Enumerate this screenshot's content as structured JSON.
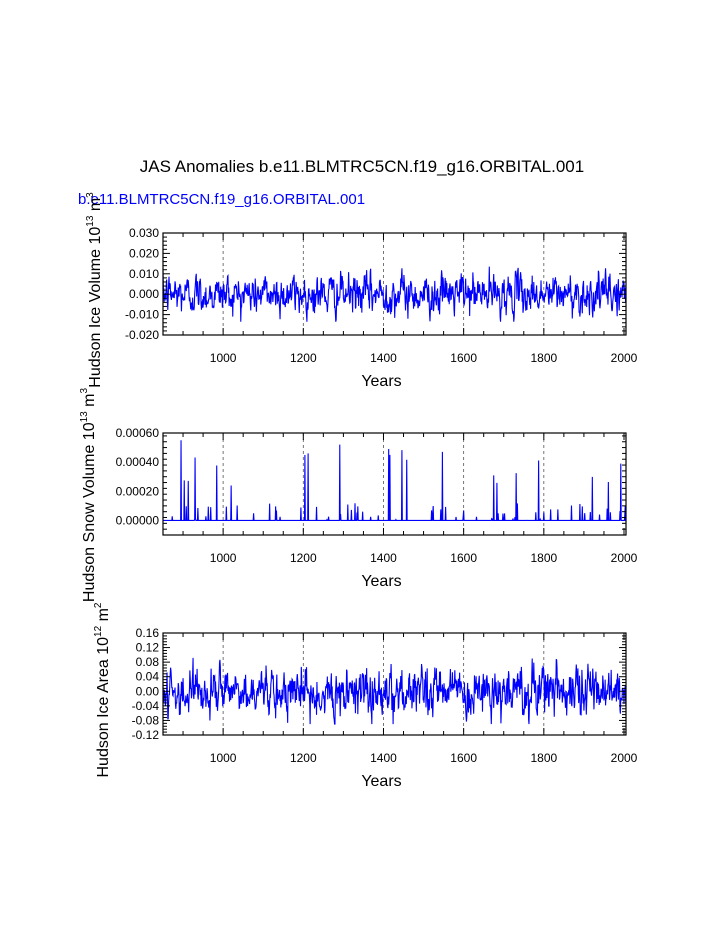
{
  "figure": {
    "title": "JAS Anomalies b.e11.BLMTRC5CN.f19_g16.ORBITAL.001",
    "subtitle": "b.e11.BLMTRC5CN.f19_g16.ORBITAL.001",
    "subtitle_color": "#0000ff",
    "line_color": "#0000ff",
    "grid_color": "#555555"
  },
  "chart_data": [
    {
      "type": "line",
      "ylabel": "Hudson Ice Volume 10",
      "ylabel_sup": "13",
      "ylabel_unit": " m",
      "ylabel_unit_sup": "3",
      "xlabel": "Years",
      "xlim": [
        850,
        2005
      ],
      "ylim": [
        -0.02,
        0.03
      ],
      "xticks": [
        1000,
        1200,
        1400,
        1600,
        1800,
        2000
      ],
      "xtick_labels": [
        "1000",
        "1200",
        "1400",
        "1600",
        "1800",
        "2000"
      ],
      "yticks": [
        -0.02,
        -0.01,
        0.0,
        0.01,
        0.02,
        0.03
      ],
      "ytick_labels": [
        "-0.020",
        "-0.010",
        "0.000",
        "0.010",
        "0.020",
        "0.030"
      ],
      "vgrid": [
        1000,
        1200,
        1400,
        1600,
        1800
      ],
      "series": [
        {
          "name": "Hudson Ice Volume anomaly",
          "x_start": 850,
          "x_end": 2005,
          "values": []
        }
      ]
    },
    {
      "type": "line",
      "ylabel": "Hudson Snow Volume 10",
      "ylabel_sup": "13",
      "ylabel_unit": " m",
      "ylabel_unit_sup": "3",
      "xlabel": "Years",
      "xlim": [
        850,
        2005
      ],
      "ylim": [
        -0.0001,
        0.0006
      ],
      "xticks": [
        1000,
        1200,
        1400,
        1600,
        1800,
        2000
      ],
      "xtick_labels": [
        "1000",
        "1200",
        "1400",
        "1600",
        "1800",
        "2000"
      ],
      "yticks": [
        0.0,
        0.0002,
        0.0004,
        0.0006
      ],
      "ytick_labels": [
        "0.00000",
        "0.00020",
        "0.00040",
        "0.00060"
      ],
      "vgrid": [
        1000,
        1200,
        1400,
        1600,
        1800
      ],
      "series": [
        {
          "name": "Hudson Snow Volume anomaly",
          "x_start": 850,
          "x_end": 2005,
          "values": []
        }
      ]
    },
    {
      "type": "line",
      "ylabel": "Hudson Ice Area 10",
      "ylabel_sup": "12",
      "ylabel_unit": " m",
      "ylabel_unit_sup": "2",
      "xlabel": "Years",
      "xlim": [
        850,
        2005
      ],
      "ylim": [
        -0.12,
        0.16
      ],
      "xticks": [
        1000,
        1200,
        1400,
        1600,
        1800,
        2000
      ],
      "xtick_labels": [
        "1000",
        "1200",
        "1400",
        "1600",
        "1800",
        "2000"
      ],
      "yticks": [
        -0.12,
        -0.08,
        -0.04,
        0.0,
        0.04,
        0.08,
        0.12,
        0.16
      ],
      "ytick_labels": [
        "-0.12",
        "-0.08",
        "-0.04",
        "0.00",
        "0.04",
        "0.08",
        "0.12",
        "0.16"
      ],
      "vgrid": [
        1000,
        1200,
        1400,
        1600,
        1800
      ],
      "series": [
        {
          "name": "Hudson Ice Area anomaly",
          "x_start": 850,
          "x_end": 2005,
          "values": []
        }
      ]
    }
  ]
}
